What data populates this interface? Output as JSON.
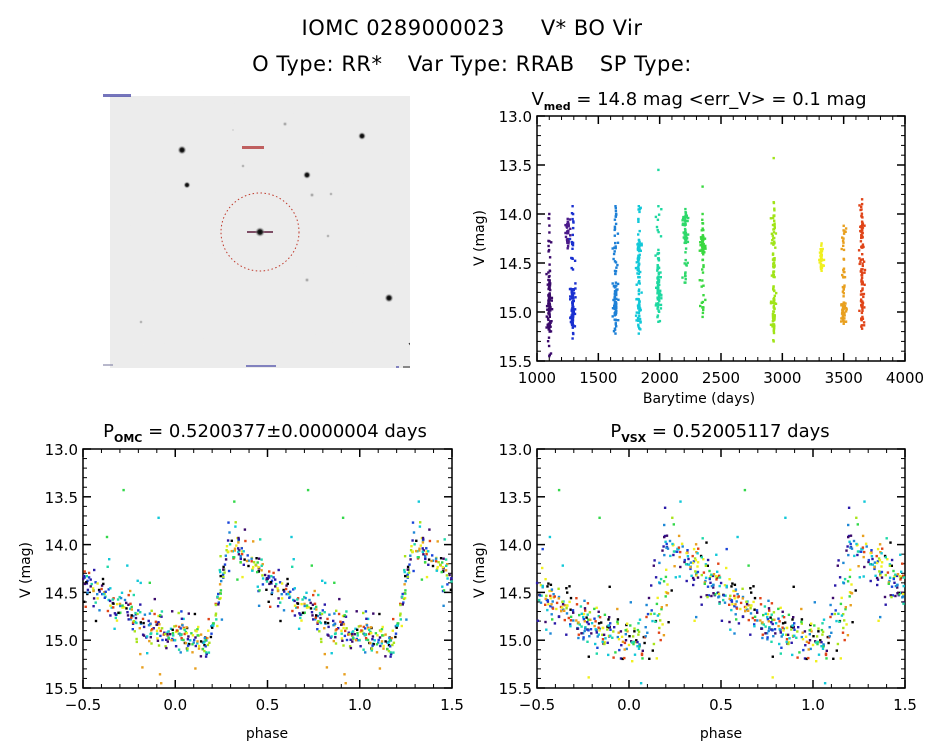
{
  "header": {
    "object_id": "IOMC 0289000023",
    "star_name": "V* BO Vir",
    "o_type_label": "O Type:",
    "o_type": "RR*",
    "var_type_label": "Var Type:",
    "var_type": "RRAB",
    "sp_type_label": "SP Type:",
    "sp_type": ""
  },
  "sky_image": {
    "description": "Grayscale finder chart with target star circled (red dotted circle) and marked with crosshair",
    "colors": {
      "background": "#ececec",
      "circle": "#c0392b",
      "crosshair": "#5a1a3a"
    }
  },
  "colors": {
    "palette": [
      "#3b0a6b",
      "#2a1aa8",
      "#1a44d8",
      "#1e88d6",
      "#12c8d8",
      "#1ed8a8",
      "#33d84a",
      "#a8e41a",
      "#f0f020",
      "#e8a020",
      "#e04418",
      "#000000"
    ]
  },
  "chart_data": [
    {
      "type": "scatter",
      "title": "V_med = 14.8 mag <err_V> = 0.1 mag",
      "title_parts": {
        "main": "V",
        "sub": "med",
        "rest": " = 14.8 mag <err_V> = 0.1 mag"
      },
      "xlabel": "Barytime (days)",
      "ylabel": "V (mag)",
      "xlim": [
        1000,
        4000
      ],
      "ylim": [
        15.5,
        13.0
      ],
      "y_inverted": true,
      "xticks": [
        "1000",
        "1500",
        "2000",
        "2500",
        "3000",
        "3500",
        "4000"
      ],
      "yticks": [
        "13.0",
        "13.5",
        "14.0",
        "14.5",
        "15.0",
        "15.5"
      ],
      "grid": false,
      "groups": [
        {
          "x": 1100,
          "ymin": 14.0,
          "ymax": 15.45,
          "dense": [
            14.7,
            15.2
          ],
          "color": "#3b0a6b"
        },
        {
          "x": 1250,
          "ymin": 14.05,
          "ymax": 14.35,
          "dense": [
            14.1,
            14.3
          ],
          "color": "#4a1a8a"
        },
        {
          "x": 1290,
          "ymin": 13.92,
          "ymax": 15.27,
          "dense": [
            14.75,
            15.15
          ],
          "color": "#1a30d0"
        },
        {
          "x": 1640,
          "ymin": 13.92,
          "ymax": 15.22,
          "dense": [
            14.7,
            15.1
          ],
          "color": "#1e80d6"
        },
        {
          "x": 1830,
          "ymin": 13.92,
          "ymax": 15.22,
          "dense": [
            14.2,
            15.2
          ],
          "color": "#12c8d8"
        },
        {
          "x": 1990,
          "ymin": 13.92,
          "ymax": 15.1,
          "dense": [
            14.4,
            15.0
          ],
          "color": "#1ed8a0"
        },
        {
          "x": 2210,
          "ymin": 13.95,
          "ymax": 14.7,
          "dense": [
            14.0,
            14.3
          ],
          "color": "#2ed86a"
        },
        {
          "x": 2350,
          "ymin": 14.0,
          "ymax": 15.05,
          "dense": [
            14.2,
            14.4
          ],
          "color": "#3ad840"
        },
        {
          "x": 2930,
          "ymin": 13.88,
          "ymax": 15.3,
          "dense": [
            14.0,
            15.2
          ],
          "color": "#a0e418"
        },
        {
          "x": 3320,
          "ymin": 14.3,
          "ymax": 14.58,
          "dense": [
            14.35,
            14.55
          ],
          "color": "#f0f020"
        },
        {
          "x": 3500,
          "ymin": 14.12,
          "ymax": 15.12,
          "dense": [
            14.9,
            15.1
          ],
          "color": "#e8a020"
        },
        {
          "x": 3650,
          "ymin": 13.85,
          "ymax": 15.17,
          "dense": [
            13.95,
            15.17
          ],
          "color": "#e04418"
        }
      ],
      "outliers": [
        {
          "x": 1990,
          "y": 13.55,
          "color": "#1ed8a0"
        },
        {
          "x": 2350,
          "y": 13.72,
          "color": "#3ad840"
        },
        {
          "x": 2930,
          "y": 13.43,
          "color": "#a0e418"
        }
      ]
    },
    {
      "type": "scatter",
      "title": "P_OMC = 0.5200377±0.0000004 days",
      "title_parts": {
        "main": "P",
        "sub": "OMC",
        "rest": " = 0.5200377±0.0000004 days"
      },
      "period_days": 0.5200377,
      "period_err_days": 4e-07,
      "xlabel": "phase",
      "ylabel": "V (mag)",
      "xlim": [
        -0.5,
        1.5
      ],
      "ylim": [
        15.5,
        13.0
      ],
      "y_inverted": true,
      "xticks": [
        "−0.5",
        "0.0",
        "0.5",
        "1.0",
        "1.5"
      ],
      "yticks": [
        "13.0",
        "13.5",
        "14.0",
        "14.5",
        "15.0",
        "15.5"
      ],
      "grid": false,
      "light_curve": {
        "max_phase": 0.29,
        "max_mag": 13.95,
        "rise_start_phase": 0.18,
        "rise_start_mag": 15.05,
        "min_phase": 0.15,
        "min_mag": 15.0,
        "mag_at_phase_0": 14.92,
        "scatter_mag": 0.12
      },
      "outliers": [
        {
          "x": -0.28,
          "y": 13.43
        },
        {
          "x": -0.09,
          "y": 13.72
        },
        {
          "x": -0.37,
          "y": 13.92
        },
        {
          "x": -0.26,
          "y": 14.22
        },
        {
          "x": 0.32,
          "y": 13.55
        },
        {
          "x": 0.72,
          "y": 13.43
        },
        {
          "x": 0.91,
          "y": 13.72
        },
        {
          "x": 0.63,
          "y": 13.92
        },
        {
          "x": 0.74,
          "y": 14.22
        },
        {
          "x": 1.32,
          "y": 13.55
        }
      ]
    },
    {
      "type": "scatter",
      "title": "P_VSX = 0.52005117 days",
      "title_parts": {
        "main": "P",
        "sub": "VSX",
        "rest": " = 0.52005117 days"
      },
      "period_days": 0.52005117,
      "xlabel": "phase",
      "ylabel": "V (mag)",
      "xlim": [
        -0.5,
        1.5
      ],
      "ylim": [
        15.5,
        13.0
      ],
      "y_inverted": true,
      "xticks": [
        "−0.5",
        "0.0",
        "0.5",
        "1.0",
        "1.5"
      ],
      "yticks": [
        "13.0",
        "13.5",
        "14.0",
        "14.5",
        "15.0",
        "15.5"
      ],
      "grid": false,
      "light_curve": {
        "max_phase": 0.22,
        "max_mag": 13.95,
        "rise_start_phase": 0.12,
        "rise_start_mag": 15.05,
        "mag_at_phase_0": 14.95,
        "scatter_mag": 0.14,
        "epoch_drift_phase": 0.06
      },
      "outliers": [
        {
          "x": -0.38,
          "y": 13.43
        },
        {
          "x": -0.16,
          "y": 13.72
        },
        {
          "x": -0.43,
          "y": 13.92
        },
        {
          "x": -0.36,
          "y": 14.22
        },
        {
          "x": 0.28,
          "y": 13.55
        },
        {
          "x": 0.63,
          "y": 13.43
        },
        {
          "x": 0.85,
          "y": 13.72
        },
        {
          "x": 0.59,
          "y": 13.92
        },
        {
          "x": 0.65,
          "y": 14.22
        },
        {
          "x": 1.28,
          "y": 13.55
        }
      ]
    }
  ]
}
